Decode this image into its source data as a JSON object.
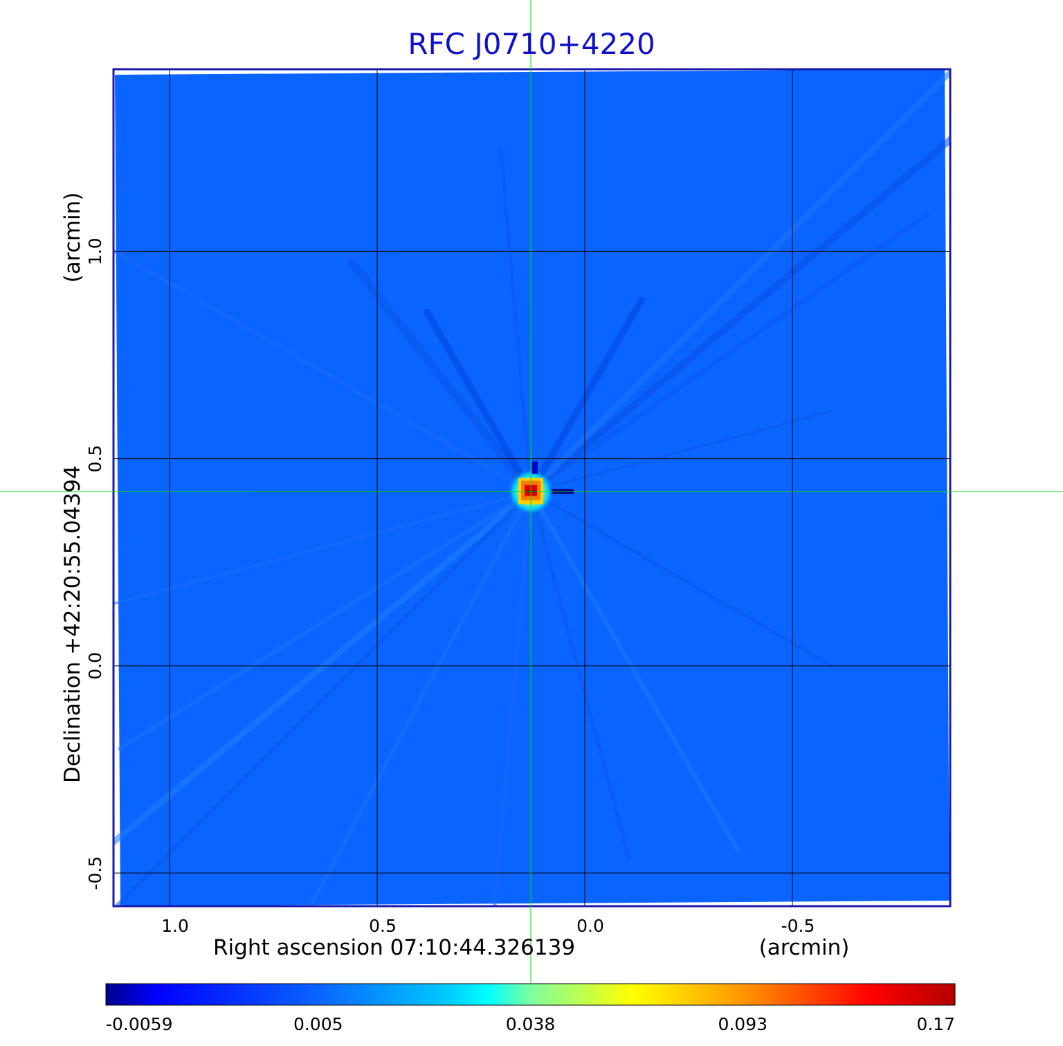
{
  "chart_data": {
    "type": "heatmap",
    "title": "RFC J0710+4220",
    "xlabel": "Right ascension  07:10:44.326139",
    "xunit": "(arcmin)",
    "ylabel": "Declination  +42:20:55.04394",
    "yunit": "(arcmin)",
    "xlim": [
      1.135,
      -0.88
    ],
    "ylim": [
      -0.58,
      1.44
    ],
    "x_ticks": [
      1.0,
      0.5,
      0.0,
      -0.5
    ],
    "x_tick_labels": [
      "1.0",
      "0.5",
      "0.0",
      "-0.5"
    ],
    "y_ticks": [
      -0.5,
      0.0,
      0.5,
      1.0
    ],
    "y_tick_labels": [
      "-0.5",
      "0.0",
      "0.5",
      "1.0"
    ],
    "grid": true,
    "crosshair": {
      "x": 0.13,
      "y": 0.42
    },
    "source_peak": {
      "x": 0.13,
      "y": 0.42,
      "value": 0.17
    },
    "colorbar": {
      "scale": "nonlinear",
      "tick_labels": [
        "-0.0059",
        "0.005",
        "0.038",
        "0.093",
        "0.17"
      ],
      "colormap": [
        "#00008c",
        "#0000ff",
        "#0a64ff",
        "#00c8ff",
        "#00ffff",
        "#7dffa0",
        "#ffff00",
        "#ff9600",
        "#ff0000",
        "#b40000"
      ]
    },
    "colors": {
      "background_map": "#0a64ff",
      "title": "#1010cc",
      "frame": "#1a1aad",
      "grid": "#000000",
      "crosshair": "#00e000"
    }
  }
}
